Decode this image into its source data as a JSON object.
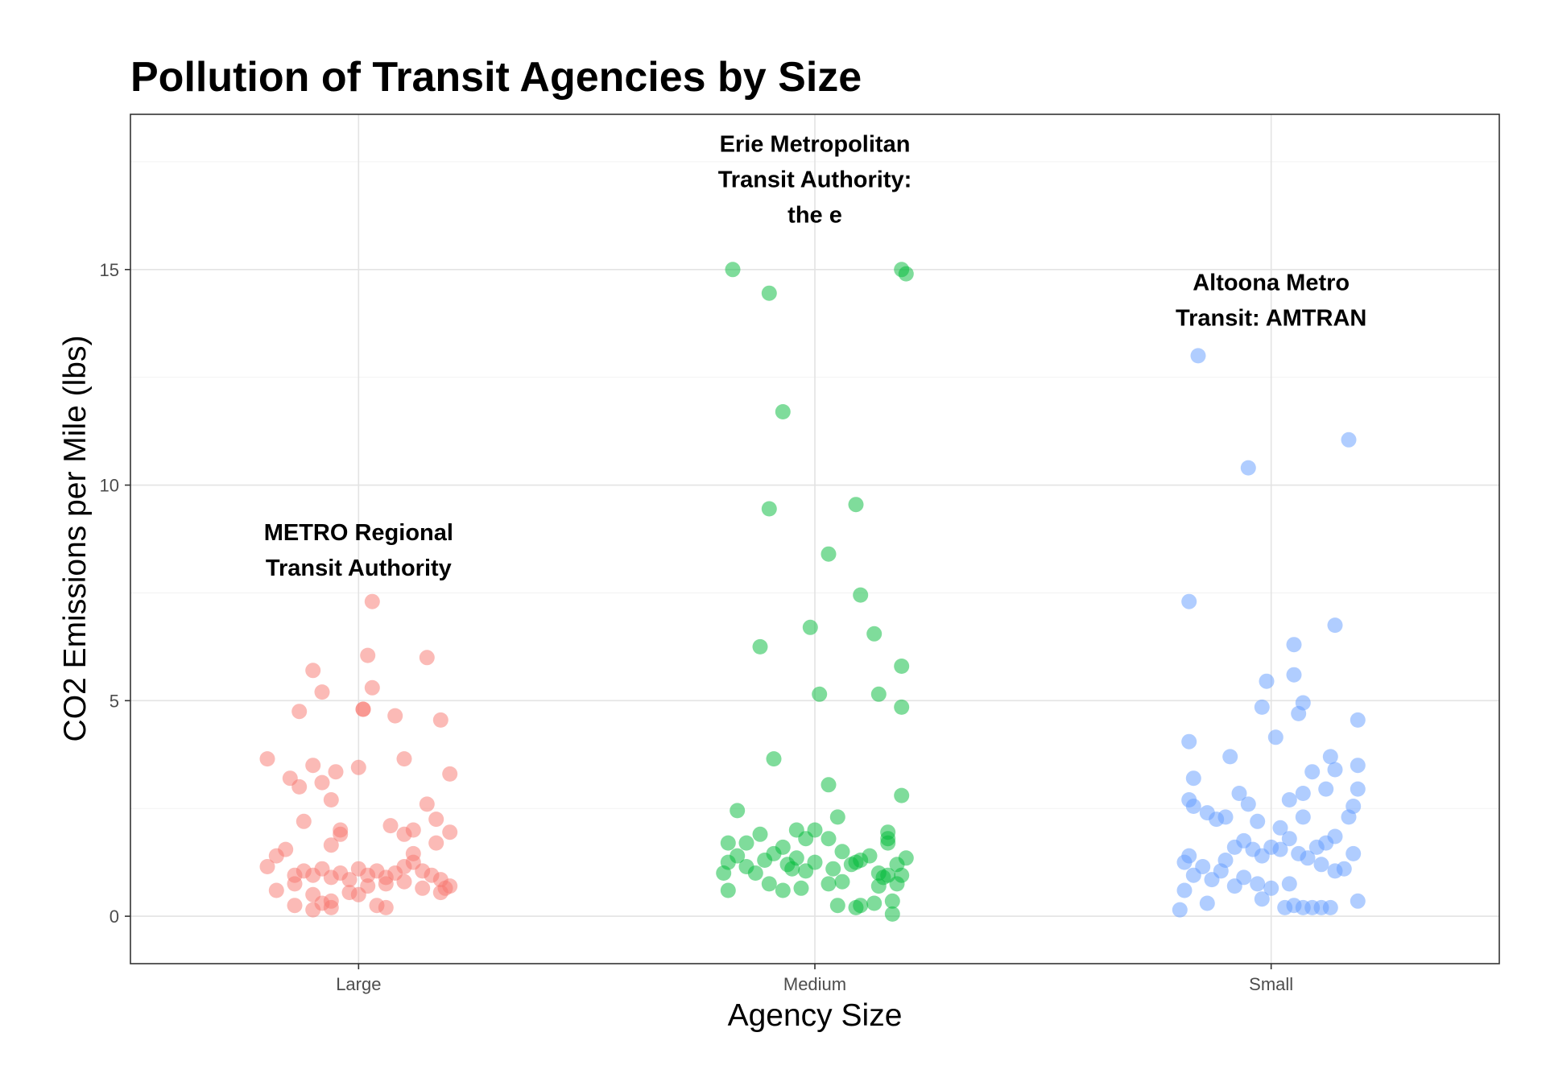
{
  "chart_data": {
    "type": "scatter",
    "title": "Pollution of Transit Agencies by Size",
    "xlabel": "Agency Size",
    "ylabel": "CO2 Emissions per Mile (lbs)",
    "categories": [
      "Large",
      "Medium",
      "Small"
    ],
    "ylim": [
      -1.1,
      18.6
    ],
    "y_ticks": [
      0,
      5,
      10,
      15
    ],
    "grid": true,
    "jitter": "horizontal",
    "point_alpha": 0.5,
    "series": [
      {
        "category": "Large",
        "color": "#F8766D",
        "points": [
          [
            -0.2,
            3.65
          ],
          [
            -0.15,
            3.2
          ],
          [
            -0.1,
            3.5
          ],
          [
            -0.05,
            3.35
          ],
          [
            0.0,
            3.45
          ],
          [
            0.1,
            3.65
          ],
          [
            -0.13,
            3.0
          ],
          [
            -0.08,
            3.1
          ],
          [
            0.18,
            4.55
          ],
          [
            0.2,
            3.3
          ],
          [
            -0.1,
            5.7
          ],
          [
            -0.08,
            5.2
          ],
          [
            -0.13,
            4.75
          ],
          [
            0.02,
            6.05
          ],
          [
            0.15,
            6.0
          ],
          [
            0.03,
            5.3
          ],
          [
            0.01,
            4.8
          ],
          [
            0.01,
            4.8
          ],
          [
            0.08,
            4.65
          ],
          [
            0.03,
            7.3
          ],
          [
            -0.12,
            2.2
          ],
          [
            -0.06,
            2.7
          ],
          [
            -0.04,
            2.0
          ],
          [
            -0.06,
            1.65
          ],
          [
            -0.04,
            1.9
          ],
          [
            0.07,
            2.1
          ],
          [
            0.1,
            1.9
          ],
          [
            0.12,
            2.0
          ],
          [
            0.15,
            2.6
          ],
          [
            0.17,
            2.25
          ],
          [
            0.2,
            1.95
          ],
          [
            -0.2,
            1.15
          ],
          [
            -0.18,
            1.4
          ],
          [
            -0.16,
            1.55
          ],
          [
            -0.14,
            0.95
          ],
          [
            -0.12,
            1.05
          ],
          [
            -0.1,
            0.95
          ],
          [
            -0.08,
            1.1
          ],
          [
            -0.06,
            0.9
          ],
          [
            -0.04,
            1.0
          ],
          [
            -0.02,
            0.85
          ],
          [
            0.0,
            1.1
          ],
          [
            0.02,
            0.95
          ],
          [
            0.04,
            1.05
          ],
          [
            0.06,
            0.9
          ],
          [
            0.08,
            1.0
          ],
          [
            0.1,
            1.15
          ],
          [
            0.12,
            1.25
          ],
          [
            0.14,
            1.05
          ],
          [
            0.16,
            0.95
          ],
          [
            0.18,
            0.85
          ],
          [
            0.2,
            0.7
          ],
          [
            -0.18,
            0.6
          ],
          [
            -0.14,
            0.75
          ],
          [
            -0.1,
            0.5
          ],
          [
            -0.06,
            0.35
          ],
          [
            -0.02,
            0.55
          ],
          [
            0.02,
            0.7
          ],
          [
            0.06,
            0.75
          ],
          [
            0.1,
            0.8
          ],
          [
            0.14,
            0.65
          ],
          [
            0.18,
            0.55
          ],
          [
            -0.14,
            0.25
          ],
          [
            -0.1,
            0.15
          ],
          [
            -0.08,
            0.3
          ],
          [
            0.04,
            0.25
          ],
          [
            0.06,
            0.2
          ],
          [
            0.0,
            0.5
          ],
          [
            0.12,
            1.45
          ],
          [
            0.19,
            0.65
          ],
          [
            0.17,
            1.7
          ],
          [
            -0.06,
            0.2
          ]
        ]
      },
      {
        "category": "Medium",
        "color": "#00BA38",
        "points": [
          [
            -0.18,
            15.0
          ],
          [
            -0.1,
            14.45
          ],
          [
            0.19,
            15.0
          ],
          [
            0.2,
            14.9
          ],
          [
            -0.07,
            11.7
          ],
          [
            -0.1,
            9.45
          ],
          [
            0.09,
            9.55
          ],
          [
            0.03,
            8.4
          ],
          [
            0.1,
            7.45
          ],
          [
            -0.01,
            6.7
          ],
          [
            -0.12,
            6.25
          ],
          [
            0.13,
            6.55
          ],
          [
            0.19,
            5.8
          ],
          [
            0.01,
            5.15
          ],
          [
            0.14,
            5.15
          ],
          [
            0.19,
            4.85
          ],
          [
            -0.09,
            3.65
          ],
          [
            0.03,
            3.05
          ],
          [
            0.19,
            2.8
          ],
          [
            -0.17,
            2.45
          ],
          [
            0.05,
            2.3
          ],
          [
            -0.19,
            1.7
          ],
          [
            -0.15,
            1.7
          ],
          [
            -0.12,
            1.9
          ],
          [
            -0.04,
            2.0
          ],
          [
            -0.02,
            1.8
          ],
          [
            0.0,
            2.0
          ],
          [
            0.03,
            1.8
          ],
          [
            0.16,
            1.7
          ],
          [
            0.16,
            1.8
          ],
          [
            0.16,
            1.95
          ],
          [
            -0.2,
            1.0
          ],
          [
            -0.19,
            1.25
          ],
          [
            -0.17,
            1.4
          ],
          [
            -0.15,
            1.15
          ],
          [
            -0.13,
            1.0
          ],
          [
            -0.11,
            1.3
          ],
          [
            -0.09,
            1.45
          ],
          [
            -0.07,
            1.6
          ],
          [
            -0.06,
            1.2
          ],
          [
            -0.04,
            1.35
          ],
          [
            -0.02,
            1.05
          ],
          [
            0.0,
            1.25
          ],
          [
            0.04,
            1.1
          ],
          [
            0.06,
            1.5
          ],
          [
            0.08,
            1.2
          ],
          [
            0.1,
            1.3
          ],
          [
            0.12,
            1.4
          ],
          [
            0.14,
            1.0
          ],
          [
            0.16,
            0.95
          ],
          [
            0.18,
            1.2
          ],
          [
            0.2,
            1.35
          ],
          [
            -0.19,
            0.6
          ],
          [
            -0.1,
            0.75
          ],
          [
            -0.07,
            0.6
          ],
          [
            -0.03,
            0.65
          ],
          [
            0.03,
            0.75
          ],
          [
            0.06,
            0.8
          ],
          [
            0.14,
            0.7
          ],
          [
            0.18,
            0.75
          ],
          [
            0.05,
            0.25
          ],
          [
            0.09,
            0.2
          ],
          [
            0.13,
            0.3
          ],
          [
            0.17,
            0.35
          ],
          [
            0.17,
            0.05
          ],
          [
            0.1,
            0.25
          ],
          [
            -0.05,
            1.1
          ],
          [
            0.09,
            1.25
          ],
          [
            0.15,
            0.9
          ],
          [
            0.19,
            0.95
          ]
        ]
      },
      {
        "category": "Small",
        "color": "#619CFF",
        "points": [
          [
            -0.16,
            13.0
          ],
          [
            -0.05,
            10.4
          ],
          [
            0.17,
            11.05
          ],
          [
            -0.18,
            7.3
          ],
          [
            0.14,
            6.75
          ],
          [
            0.05,
            6.3
          ],
          [
            -0.01,
            5.45
          ],
          [
            0.05,
            5.6
          ],
          [
            -0.02,
            4.85
          ],
          [
            0.07,
            4.95
          ],
          [
            0.06,
            4.7
          ],
          [
            0.19,
            4.55
          ],
          [
            -0.18,
            4.05
          ],
          [
            0.01,
            4.15
          ],
          [
            -0.09,
            3.7
          ],
          [
            0.13,
            3.7
          ],
          [
            -0.17,
            3.2
          ],
          [
            0.09,
            3.35
          ],
          [
            0.14,
            3.4
          ],
          [
            0.19,
            3.5
          ],
          [
            -0.18,
            2.7
          ],
          [
            -0.17,
            2.55
          ],
          [
            -0.14,
            2.4
          ],
          [
            -0.1,
            2.3
          ],
          [
            -0.12,
            2.25
          ],
          [
            -0.07,
            2.85
          ],
          [
            -0.05,
            2.6
          ],
          [
            -0.03,
            2.2
          ],
          [
            0.02,
            2.05
          ],
          [
            0.04,
            2.7
          ],
          [
            0.07,
            2.85
          ],
          [
            0.07,
            2.3
          ],
          [
            0.12,
            2.95
          ],
          [
            0.17,
            2.3
          ],
          [
            0.18,
            2.55
          ],
          [
            0.19,
            2.95
          ],
          [
            -0.19,
            1.25
          ],
          [
            -0.18,
            1.4
          ],
          [
            -0.17,
            0.95
          ],
          [
            -0.15,
            1.15
          ],
          [
            -0.13,
            0.85
          ],
          [
            -0.11,
            1.05
          ],
          [
            -0.1,
            1.3
          ],
          [
            -0.08,
            1.6
          ],
          [
            -0.06,
            1.75
          ],
          [
            -0.04,
            1.55
          ],
          [
            -0.02,
            1.4
          ],
          [
            0.0,
            1.6
          ],
          [
            0.02,
            1.55
          ],
          [
            0.04,
            1.8
          ],
          [
            0.06,
            1.45
          ],
          [
            0.08,
            1.35
          ],
          [
            0.1,
            1.6
          ],
          [
            0.12,
            1.7
          ],
          [
            0.14,
            1.85
          ],
          [
            0.16,
            1.1
          ],
          [
            0.18,
            1.45
          ],
          [
            -0.19,
            0.6
          ],
          [
            -0.14,
            0.3
          ],
          [
            -0.08,
            0.7
          ],
          [
            -0.06,
            0.9
          ],
          [
            -0.03,
            0.75
          ],
          [
            -0.02,
            0.4
          ],
          [
            0.0,
            0.65
          ],
          [
            0.03,
            0.2
          ],
          [
            0.05,
            0.25
          ],
          [
            0.07,
            0.2
          ],
          [
            0.09,
            0.2
          ],
          [
            0.11,
            0.2
          ],
          [
            0.13,
            0.2
          ],
          [
            0.19,
            0.35
          ],
          [
            -0.2,
            0.15
          ],
          [
            0.04,
            0.75
          ],
          [
            0.11,
            1.2
          ],
          [
            0.14,
            1.05
          ]
        ]
      }
    ],
    "annotations": [
      {
        "category": "Large",
        "y": 8.5,
        "lines": [
          "METRO Regional",
          "Transit Authority"
        ]
      },
      {
        "category": "Medium",
        "y": 17.1,
        "lines": [
          "Erie Metropolitan",
          "Transit Authority:",
          "the e"
        ]
      },
      {
        "category": "Small",
        "y": 14.3,
        "lines": [
          "Altoona Metro",
          "Transit: AMTRAN"
        ]
      }
    ]
  }
}
